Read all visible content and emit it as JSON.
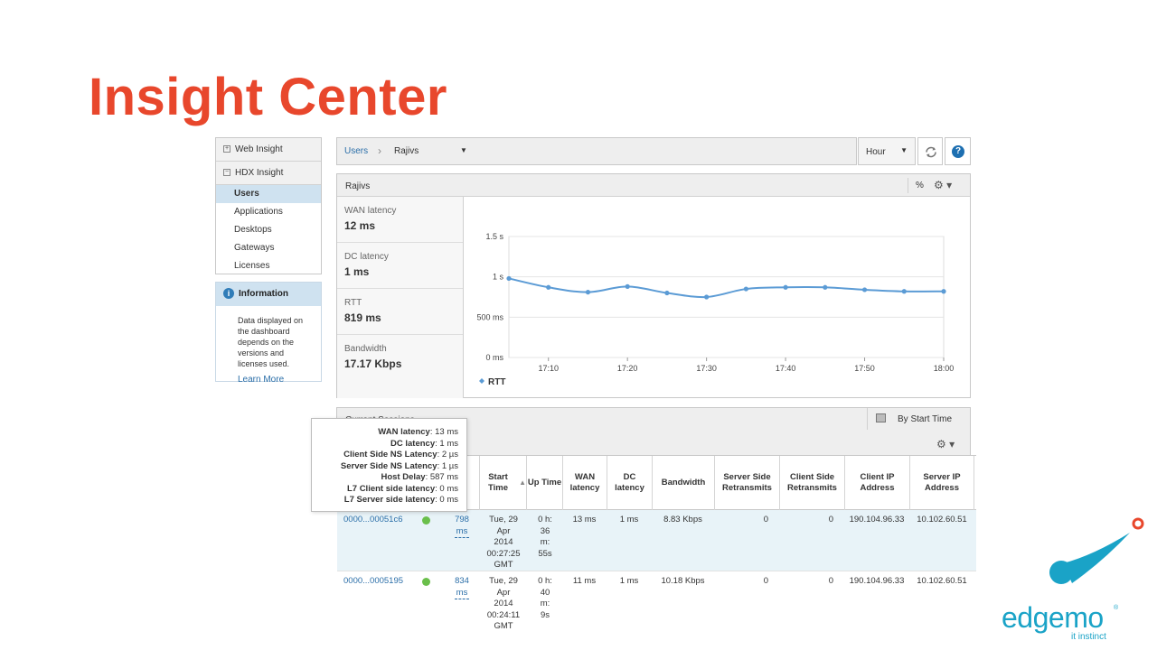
{
  "slide": {
    "title": "Insight Center"
  },
  "nav": {
    "web_insight": "Web Insight",
    "hdx_insight": "HDX Insight",
    "items": [
      {
        "label": "Users",
        "active": true
      },
      {
        "label": "Applications"
      },
      {
        "label": "Desktops"
      },
      {
        "label": "Gateways"
      },
      {
        "label": "Licenses"
      }
    ]
  },
  "info": {
    "title": "Information",
    "text": "Data displayed on the dashboard depends on the versions and licenses used.",
    "link": "Learn More"
  },
  "breadcrumb": {
    "root": "Users",
    "current": "Rajivs"
  },
  "toolbar": {
    "range": "Hour"
  },
  "panel": {
    "name": "Rajivs",
    "percent": "%",
    "metrics": [
      {
        "label": "WAN latency",
        "value": "12 ms"
      },
      {
        "label": "DC latency",
        "value": "1 ms"
      },
      {
        "label": "RTT",
        "value": "819 ms"
      },
      {
        "label": "Bandwidth",
        "value": "17.17 Kbps"
      }
    ]
  },
  "chart_data": {
    "type": "line",
    "series": [
      {
        "name": "RTT",
        "color": "#5b9bd5",
        "x": [
          "17:05",
          "17:10",
          "17:15",
          "17:20",
          "17:25",
          "17:30",
          "17:35",
          "17:40",
          "17:45",
          "17:50",
          "17:55",
          "18:00"
        ],
        "values": [
          0.98,
          0.87,
          0.81,
          0.88,
          0.8,
          0.75,
          0.85,
          0.87,
          0.87,
          0.84,
          0.82,
          0.82
        ]
      }
    ],
    "x_ticks": [
      "17:10",
      "17:20",
      "17:30",
      "17:40",
      "17:50",
      "18:00"
    ],
    "y_ticks": [
      {
        "value": 0,
        "label": "0 ms"
      },
      {
        "value": 0.5,
        "label": "500 ms"
      },
      {
        "value": 1,
        "label": "1 s"
      },
      {
        "value": 1.5,
        "label": "1.5 s"
      }
    ],
    "ylim": [
      0,
      1.5
    ],
    "grid": true,
    "legend": "bottom-left"
  },
  "sessions": {
    "title": "Current Sessions",
    "sort_label": "By Start Time",
    "columns": [
      "Start Time",
      "Up Time",
      "WAN latency",
      "DC latency",
      "Bandwidth",
      "Server Side Retransmits",
      "Client Side Retransmits",
      "Client IP Address",
      "Server IP Address"
    ],
    "rows": [
      {
        "id": "0000...00051c6",
        "rtt": "798 ms",
        "start": "Tue, 29 Apr 2014 00:27:25 GMT",
        "up": "0 h: 36 m: 55s",
        "wan": "13 ms",
        "dc": "1 ms",
        "bw": "8.83 Kbps",
        "srv_rt": "0",
        "cli_rt": "0",
        "cli_ip": "190.104.96.33",
        "srv_ip": "10.102.60.51"
      },
      {
        "id": "0000...0005195",
        "rtt": "834 ms",
        "start": "Tue, 29 Apr 2014 00:24:11 GMT",
        "up": "0 h: 40 m: 9s",
        "wan": "11 ms",
        "dc": "1 ms",
        "bw": "10.18 Kbps",
        "srv_rt": "0",
        "cli_rt": "0",
        "cli_ip": "190.104.96.33",
        "srv_ip": "10.102.60.51"
      }
    ]
  },
  "tooltip": [
    {
      "label": "WAN latency",
      "value": "13 ms"
    },
    {
      "label": "DC latency",
      "value": "1 ms"
    },
    {
      "label": "Client Side NS Latency",
      "value": "2 µs"
    },
    {
      "label": "Server Side NS Latency",
      "value": "1 µs"
    },
    {
      "label": "Host Delay",
      "value": "587 ms"
    },
    {
      "label": "L7 Client side latency",
      "value": "0 ms"
    },
    {
      "label": "L7 Server side latency",
      "value": "0 ms"
    }
  ],
  "logo": {
    "word": "edgemo",
    "reg": "®",
    "tagline": "it instinct"
  },
  "colors": {
    "title": "#e8472c",
    "link": "#2a6ea8",
    "accent": "#1aa3c7",
    "active_row": "#e8f3f8"
  }
}
